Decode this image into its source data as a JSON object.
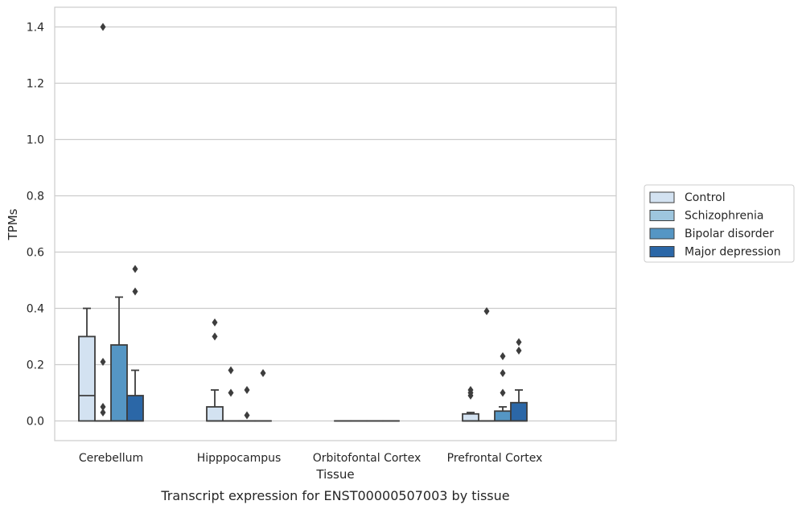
{
  "chart_data": {
    "type": "box",
    "title": "Transcript expression for ENST00000507003 by tissue",
    "xlabel": "Tissue",
    "ylabel": "TPMs",
    "ylim": [
      -0.07,
      1.47
    ],
    "yticks": [
      0.0,
      0.2,
      0.4,
      0.6,
      0.8,
      1.0,
      1.2,
      1.4
    ],
    "ytick_labels": [
      "0.0",
      "0.2",
      "0.4",
      "0.6",
      "0.8",
      "1.0",
      "1.2",
      "1.4"
    ],
    "categories": [
      "Cerebellum",
      "Hipppocampus",
      "Orbitofontal Cortex",
      "Prefrontal Cortex"
    ],
    "grid": "horizontal",
    "legend_position": "right",
    "series": [
      {
        "name": "Control",
        "color": "#d3e2f1",
        "boxes": [
          {
            "q1": 0.0,
            "median": 0.09,
            "q3": 0.3,
            "whisker_low": 0.0,
            "whisker_high": 0.4,
            "outliers": []
          },
          {
            "q1": 0.0,
            "median": 0.0,
            "q3": 0.05,
            "whisker_low": 0.0,
            "whisker_high": 0.11,
            "outliers": [
              0.3,
              0.35
            ]
          },
          {
            "q1": 0.0,
            "median": 0.0,
            "q3": 0.0,
            "whisker_low": 0.0,
            "whisker_high": 0.0,
            "outliers": []
          },
          {
            "q1": 0.0,
            "median": 0.0,
            "q3": 0.025,
            "whisker_low": 0.0,
            "whisker_high": 0.03,
            "outliers": [
              0.09,
              0.1,
              0.11
            ]
          }
        ]
      },
      {
        "name": "Schizophrenia",
        "color": "#9ec6de",
        "boxes": [
          {
            "q1": 0.0,
            "median": 0.0,
            "q3": 0.0,
            "whisker_low": 0.0,
            "whisker_high": 0.0,
            "outliers": [
              0.03,
              0.05,
              0.21,
              1.4
            ]
          },
          {
            "q1": 0.0,
            "median": 0.0,
            "q3": 0.0,
            "whisker_low": 0.0,
            "whisker_high": 0.0,
            "outliers": [
              0.1,
              0.18
            ]
          },
          {
            "q1": 0.0,
            "median": 0.0,
            "q3": 0.0,
            "whisker_low": 0.0,
            "whisker_high": 0.0,
            "outliers": []
          },
          {
            "q1": 0.0,
            "median": 0.0,
            "q3": 0.0,
            "whisker_low": 0.0,
            "whisker_high": 0.0,
            "outliers": [
              0.39
            ]
          }
        ]
      },
      {
        "name": "Bipolar disorder",
        "color": "#5596c4",
        "boxes": [
          {
            "q1": 0.0,
            "median": 0.0,
            "q3": 0.27,
            "whisker_low": 0.0,
            "whisker_high": 0.44,
            "outliers": []
          },
          {
            "q1": 0.0,
            "median": 0.0,
            "q3": 0.0,
            "whisker_low": 0.0,
            "whisker_high": 0.0,
            "outliers": [
              0.02,
              0.11
            ]
          },
          {
            "q1": 0.0,
            "median": 0.0,
            "q3": 0.0,
            "whisker_low": 0.0,
            "whisker_high": 0.0,
            "outliers": []
          },
          {
            "q1": 0.0,
            "median": 0.0,
            "q3": 0.035,
            "whisker_low": 0.0,
            "whisker_high": 0.05,
            "outliers": [
              0.1,
              0.17,
              0.23
            ]
          }
        ]
      },
      {
        "name": "Major depression",
        "color": "#2b67a7",
        "boxes": [
          {
            "q1": 0.0,
            "median": 0.0,
            "q3": 0.09,
            "whisker_low": 0.0,
            "whisker_high": 0.18,
            "outliers": [
              0.46,
              0.54
            ]
          },
          {
            "q1": 0.0,
            "median": 0.0,
            "q3": 0.0,
            "whisker_low": 0.0,
            "whisker_high": 0.0,
            "outliers": [
              0.17
            ]
          },
          {
            "q1": 0.0,
            "median": 0.0,
            "q3": 0.0,
            "whisker_low": 0.0,
            "whisker_high": 0.0,
            "outliers": []
          },
          {
            "q1": 0.0,
            "median": 0.0,
            "q3": 0.065,
            "whisker_low": 0.0,
            "whisker_high": 0.11,
            "outliers": [
              0.25,
              0.28
            ]
          }
        ]
      }
    ]
  }
}
